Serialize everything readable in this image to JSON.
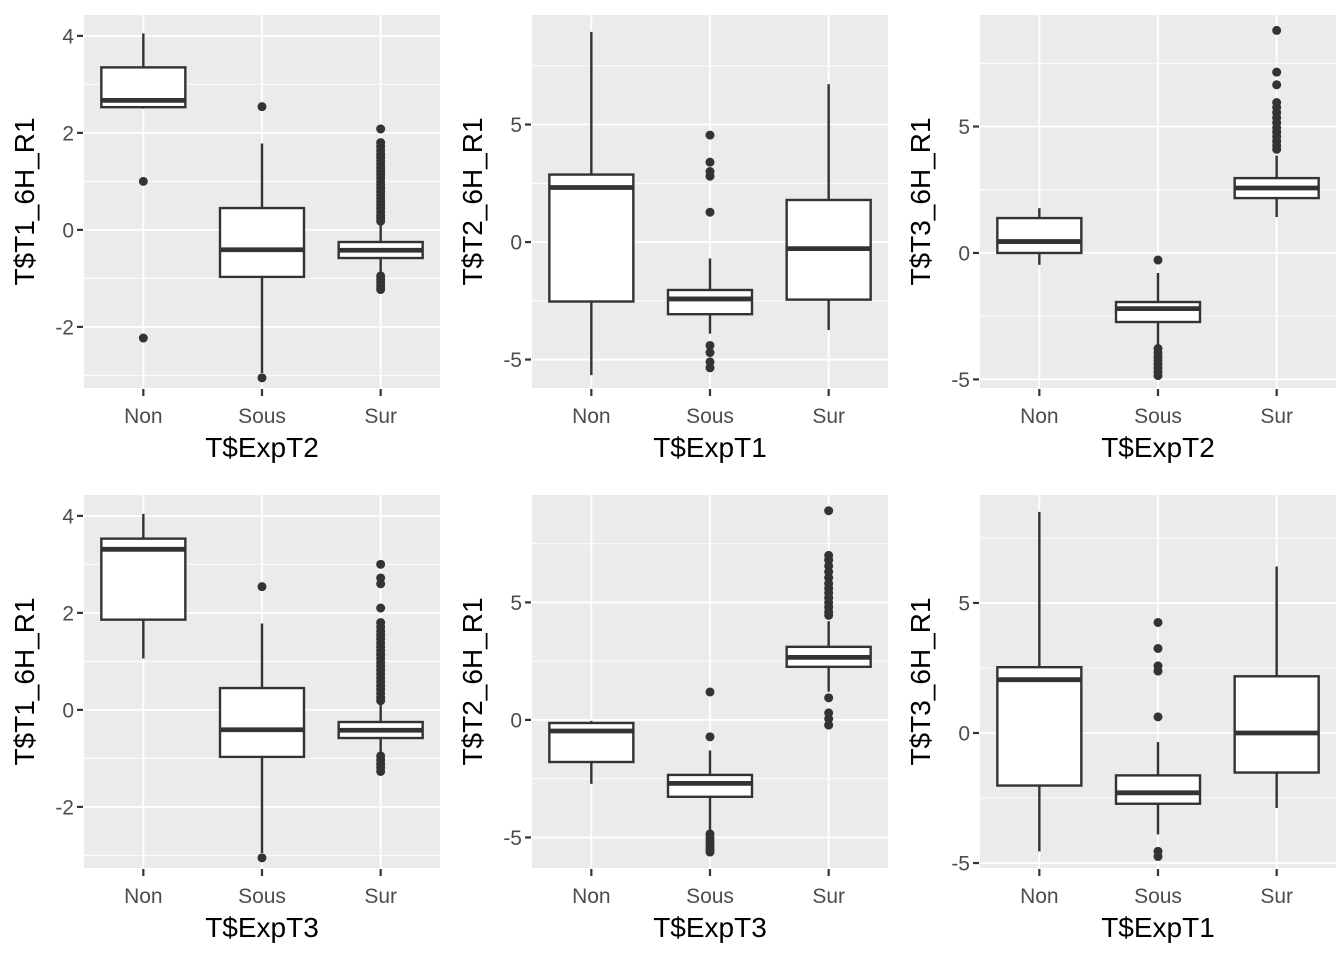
{
  "figure": {
    "background": "#FFFFFF",
    "panel_background": "#EBEBEB",
    "grid_color": "#FFFFFF",
    "box_stroke_color": "#333333",
    "box_fill_color": "#FFFFFF",
    "outlier_color": "#333333",
    "tick_mark_color": "#333333",
    "tick_label_color": "#4D4D4D",
    "axis_title_color": "#000000"
  },
  "chart_data": [
    {
      "type": "boxplot",
      "title": "",
      "xlabel": "T$ExpT2",
      "ylabel": "T$T1_6H_R1",
      "categories": [
        "Non",
        "Sous",
        "Sur"
      ],
      "ylim": [
        -3.26,
        4.43
      ],
      "yticks": [
        -2,
        0,
        2,
        4
      ],
      "yminor": [
        -3,
        -1,
        1,
        3
      ],
      "grid": true,
      "legend": "none",
      "boxes": [
        {
          "category": "Non",
          "whisker_low": 2.5,
          "q1": 2.53,
          "median": 2.67,
          "q3": 3.35,
          "whisker_high": 4.05,
          "outliers": [
            1.0,
            -2.23
          ]
        },
        {
          "category": "Sous",
          "whisker_low": -2.95,
          "q1": -0.97,
          "median": -0.41,
          "q3": 0.45,
          "whisker_high": 1.78,
          "outliers": [
            2.54,
            -3.05
          ]
        },
        {
          "category": "Sur",
          "whisker_low": -0.89,
          "q1": -0.58,
          "median": -0.42,
          "q3": -0.25,
          "whisker_high": 0.15,
          "outliers": [
            2.08,
            1.8,
            1.72,
            1.64,
            1.56,
            1.49,
            1.42,
            1.35,
            1.28,
            1.21,
            1.14,
            1.07,
            1.0,
            0.93,
            0.86,
            0.79,
            0.72,
            0.65,
            0.58,
            0.51,
            0.44,
            0.37,
            0.3,
            0.24,
            0.18,
            -0.95,
            -1.02,
            -1.09,
            -1.16,
            -1.23
          ]
        }
      ]
    },
    {
      "type": "boxplot",
      "title": "",
      "xlabel": "T$ExpT1",
      "ylabel": "T$T2_6H_R1",
      "categories": [
        "Non",
        "Sous",
        "Sur"
      ],
      "ylim": [
        -6.21,
        9.66
      ],
      "yticks": [
        -5,
        0,
        5
      ],
      "yminor": [
        -2.5,
        2.5,
        7.5
      ],
      "grid": true,
      "legend": "none",
      "boxes": [
        {
          "category": "Non",
          "whisker_low": -5.66,
          "q1": -2.53,
          "median": 2.32,
          "q3": 2.87,
          "whisker_high": 8.94,
          "outliers": []
        },
        {
          "category": "Sous",
          "whisker_low": -3.9,
          "q1": -3.07,
          "median": -2.42,
          "q3": -2.04,
          "whisker_high": -0.7,
          "outliers": [
            4.55,
            3.4,
            3.0,
            2.8,
            1.27,
            -4.4,
            -4.7,
            -5.1,
            -5.35
          ]
        },
        {
          "category": "Sur",
          "whisker_low": -3.74,
          "q1": -2.45,
          "median": -0.28,
          "q3": 1.79,
          "whisker_high": 6.72,
          "outliers": []
        }
      ]
    },
    {
      "type": "boxplot",
      "title": "",
      "xlabel": "T$ExpT2",
      "ylabel": "T$T3_6H_R1",
      "categories": [
        "Non",
        "Sous",
        "Sur"
      ],
      "ylim": [
        -5.34,
        9.41
      ],
      "yticks": [
        -5,
        0,
        5
      ],
      "yminor": [
        -2.5,
        2.5,
        7.5
      ],
      "grid": true,
      "legend": "none",
      "boxes": [
        {
          "category": "Non",
          "whisker_low": -0.47,
          "q1": 0.0,
          "median": 0.45,
          "q3": 1.38,
          "whisker_high": 1.77,
          "outliers": []
        },
        {
          "category": "Sous",
          "whisker_low": -3.64,
          "q1": -2.73,
          "median": -2.2,
          "q3": -1.94,
          "whisker_high": -0.79,
          "outliers": [
            -0.28,
            -3.78,
            -3.95,
            -4.1,
            -4.25,
            -4.4,
            -4.55,
            -4.7,
            -4.85
          ]
        },
        {
          "category": "Sur",
          "whisker_low": 1.42,
          "q1": 2.17,
          "median": 2.57,
          "q3": 2.96,
          "whisker_high": 3.85,
          "outliers": [
            8.8,
            7.15,
            6.65,
            5.95,
            5.75,
            5.55,
            5.35,
            5.15,
            4.95,
            4.78,
            4.6,
            4.42,
            4.25,
            4.1
          ]
        }
      ]
    },
    {
      "type": "boxplot",
      "title": "",
      "xlabel": "T$ExpT3",
      "ylabel": "T$T1_6H_R1",
      "categories": [
        "Non",
        "Sous",
        "Sur"
      ],
      "ylim": [
        -3.26,
        4.43
      ],
      "yticks": [
        -2,
        0,
        2,
        4
      ],
      "yminor": [
        -3,
        -1,
        1,
        3
      ],
      "grid": true,
      "legend": "none",
      "boxes": [
        {
          "category": "Non",
          "whisker_low": 1.06,
          "q1": 1.86,
          "median": 3.31,
          "q3": 3.53,
          "whisker_high": 4.04,
          "outliers": []
        },
        {
          "category": "Sous",
          "whisker_low": -2.95,
          "q1": -0.97,
          "median": -0.41,
          "q3": 0.45,
          "whisker_high": 1.78,
          "outliers": [
            2.54,
            -3.05
          ]
        },
        {
          "category": "Sur",
          "whisker_low": -0.89,
          "q1": -0.58,
          "median": -0.42,
          "q3": -0.25,
          "whisker_high": 0.15,
          "outliers": [
            3.0,
            2.72,
            2.6,
            2.1,
            1.8,
            1.71,
            1.62,
            1.54,
            1.46,
            1.38,
            1.3,
            1.22,
            1.14,
            1.06,
            0.98,
            0.9,
            0.82,
            0.74,
            0.66,
            0.58,
            0.5,
            0.42,
            0.34,
            0.26,
            0.19,
            -0.95,
            -1.03,
            -1.11,
            -1.19,
            -1.27
          ]
        }
      ]
    },
    {
      "type": "boxplot",
      "title": "",
      "xlabel": "T$ExpT3",
      "ylabel": "T$T2_6H_R1",
      "categories": [
        "Non",
        "Sous",
        "Sur"
      ],
      "ylim": [
        -6.3,
        9.57
      ],
      "yticks": [
        -5,
        0,
        5
      ],
      "yminor": [
        -2.5,
        2.5,
        7.5
      ],
      "grid": true,
      "legend": "none",
      "boxes": [
        {
          "category": "Non",
          "whisker_low": -2.72,
          "q1": -1.79,
          "median": -0.47,
          "q3": -0.13,
          "whisker_high": -0.04,
          "outliers": []
        },
        {
          "category": "Sous",
          "whisker_low": -4.68,
          "q1": -3.27,
          "median": -2.7,
          "q3": -2.34,
          "whisker_high": -1.3,
          "outliers": [
            1.19,
            -0.72,
            -4.85,
            -5.0,
            -5.12,
            -5.25,
            -5.38,
            -5.5,
            -5.62
          ]
        },
        {
          "category": "Sur",
          "whisker_low": 1.2,
          "q1": 2.26,
          "median": 2.66,
          "q3": 3.11,
          "whisker_high": 4.2,
          "outliers": [
            8.9,
            7.0,
            6.8,
            6.55,
            6.3,
            6.05,
            5.8,
            5.6,
            5.4,
            5.2,
            5.0,
            4.8,
            4.6,
            4.45,
            0.94,
            0.3,
            0.05,
            -0.22
          ]
        }
      ]
    },
    {
      "type": "boxplot",
      "title": "",
      "xlabel": "T$ExpT1",
      "ylabel": "T$T3_6H_R1",
      "categories": [
        "Non",
        "Sous",
        "Sur"
      ],
      "ylim": [
        -5.19,
        9.15
      ],
      "yticks": [
        -5,
        0,
        5
      ],
      "yminor": [
        -2.5,
        2.5,
        7.5
      ],
      "grid": true,
      "legend": "none",
      "boxes": [
        {
          "category": "Non",
          "whisker_low": -4.55,
          "q1": -2.02,
          "median": 2.05,
          "q3": 2.53,
          "whisker_high": 8.5,
          "outliers": []
        },
        {
          "category": "Sous",
          "whisker_low": -3.9,
          "q1": -2.72,
          "median": -2.3,
          "q3": -1.63,
          "whisker_high": -0.35,
          "outliers": [
            4.25,
            3.25,
            2.58,
            2.38,
            0.62,
            -4.55,
            -4.75
          ]
        },
        {
          "category": "Sur",
          "whisker_low": -2.88,
          "q1": -1.52,
          "median": 0.0,
          "q3": 2.18,
          "whisker_high": 6.4,
          "outliers": []
        }
      ]
    }
  ]
}
